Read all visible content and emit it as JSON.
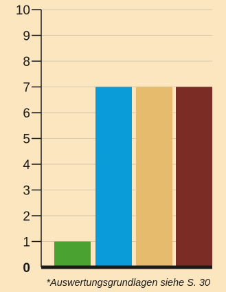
{
  "chart_data": {
    "type": "bar",
    "categories": [
      "",
      "",
      "",
      ""
    ],
    "values": [
      1,
      7,
      7,
      7
    ],
    "colors": [
      "#4aa231",
      "#0a9bd9",
      "#e6bb6e",
      "#7b2c25"
    ],
    "ylim": [
      0,
      10
    ],
    "yticks": [
      "0",
      "1",
      "2",
      "3",
      "4",
      "5",
      "6",
      "7",
      "8",
      "9",
      "10"
    ],
    "grid": true,
    "footnote": "*Auswertungsgrundlagen siehe S. 30"
  }
}
